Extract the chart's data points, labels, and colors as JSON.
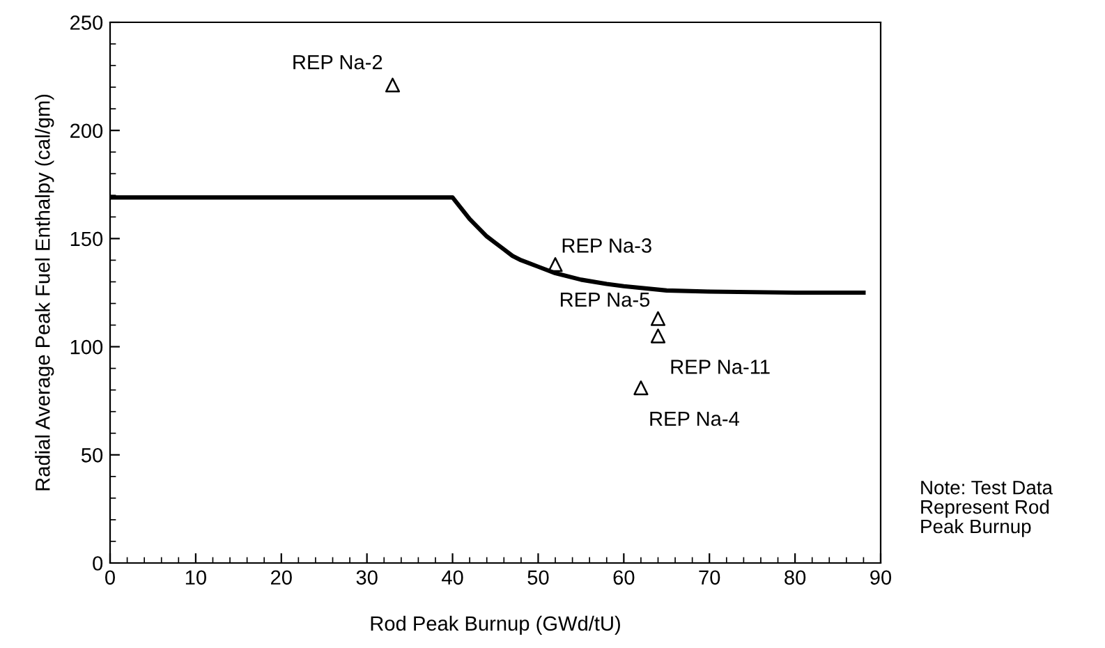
{
  "chart_data": {
    "type": "scatter",
    "xlabel": "Rod Peak Burnup (GWd/tU)",
    "ylabel": "Radial Average Peak Fuel Enthalpy (cal/gm)",
    "xlim": [
      0,
      90
    ],
    "ylim": [
      0,
      250
    ],
    "xticks": [
      0,
      10,
      20,
      30,
      40,
      50,
      60,
      70,
      80,
      90
    ],
    "yticks": [
      0,
      50,
      100,
      150,
      200,
      250
    ],
    "grid": false,
    "legend": false,
    "series": [
      {
        "type": "line",
        "color": "#000000",
        "line_style": "solid",
        "marker": "none",
        "x": [
          0,
          40,
          41,
          42,
          43,
          44,
          45,
          46,
          47,
          48,
          50,
          52,
          55,
          58,
          60,
          65,
          70,
          80,
          88
        ],
        "values": [
          169,
          169,
          164,
          159,
          155,
          151,
          148,
          145,
          142,
          140,
          137,
          134,
          131,
          129,
          128,
          126,
          125.5,
          125,
          125
        ]
      },
      {
        "color": "#000000",
        "marker": "triangle",
        "x": [
          33,
          52,
          64,
          64,
          62
        ],
        "values": [
          221,
          138,
          113,
          105,
          81
        ]
      }
    ],
    "annotations": [
      {
        "text": "REP Na-2",
        "x": 33,
        "y": 221
      },
      {
        "text": "REP Na-3",
        "x": 52,
        "y": 138
      },
      {
        "text": "REP Na-5",
        "x": 64,
        "y": 113
      },
      {
        "text": "REP Na-11",
        "x": 64,
        "y": 105
      },
      {
        "text": "REP Na-4",
        "x": 62,
        "y": 81
      },
      "Note: Test Data\nRepresent Rod\nPeak Burnup"
    ]
  }
}
